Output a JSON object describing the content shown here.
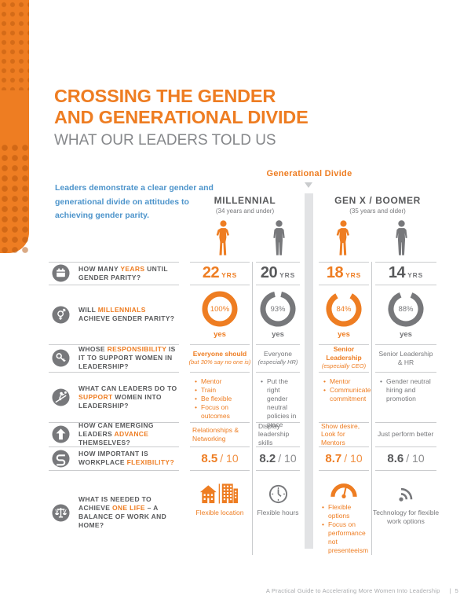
{
  "colors": {
    "orange": "#EE7D22",
    "dark_gray": "#58595B",
    "mid_gray": "#77787B",
    "blue": "#4D94CB",
    "line": "#CBCCCE",
    "band": "#E2E3E5",
    "footer_gray": "#A8AAAD"
  },
  "header": {
    "title_line1": "CROSSING THE GENDER",
    "title_line2": "AND GENERATIONAL DIVIDE",
    "subtitle": "WHAT OUR LEADERS TOLD US",
    "intro": "Leaders demonstrate a clear gender and generational divide on attitudes to achieving gender parity."
  },
  "divide": {
    "label": "Generational Divide",
    "arrow_icon": "chevron-down-icon"
  },
  "groups": [
    {
      "name": "MILLENNIAL",
      "age": "(34 years and under)"
    },
    {
      "name": "GEN X / BOOMER",
      "age": "(35 years and older)"
    }
  ],
  "columns": [
    {
      "group": "MILLENNIAL",
      "gender": "female",
      "tone": "o",
      "icon": "female-figure-icon"
    },
    {
      "group": "MILLENNIAL",
      "gender": "male",
      "tone": "g",
      "icon": "male-figure-icon"
    },
    {
      "group": "GEN X / BOOMER",
      "gender": "female",
      "tone": "o",
      "icon": "female-figure-icon"
    },
    {
      "group": "GEN X / BOOMER",
      "gender": "male",
      "tone": "g",
      "icon": "male-figure-icon"
    }
  ],
  "rows": [
    {
      "id": "years",
      "icon": "calendar-icon",
      "question": [
        {
          "t": "HOW MANY "
        },
        {
          "t": "YEARS",
          "hl": 1
        },
        {
          "t": " UNTIL GENDER PARITY?"
        }
      ],
      "cells": [
        {
          "type": "years",
          "num": "22",
          "unit": "YRS"
        },
        {
          "type": "years",
          "num": "20",
          "unit": "YRS"
        },
        {
          "type": "years",
          "num": "18",
          "unit": "YRS"
        },
        {
          "type": "years",
          "num": "14",
          "unit": "YRS"
        }
      ]
    },
    {
      "id": "parity",
      "icon": "gender-icon",
      "question": [
        {
          "t": "WILL "
        },
        {
          "t": "MILLENNIALS",
          "hl": 1
        },
        {
          "t": " ACHIEVE GENDER PARITY?"
        }
      ],
      "cells": [
        {
          "type": "donut",
          "pct": 100,
          "label": "yes"
        },
        {
          "type": "donut",
          "pct": 93,
          "label": "yes"
        },
        {
          "type": "donut",
          "pct": 84,
          "label": "yes"
        },
        {
          "type": "donut",
          "pct": 88,
          "label": "yes"
        }
      ]
    },
    {
      "id": "responsibility",
      "icon": "key-icon",
      "rowclass": "r-resp",
      "question": [
        {
          "t": "WHOSE "
        },
        {
          "t": "RESPONSIBILITY",
          "hl": 1
        },
        {
          "t": " IS IT TO SUPPORT WOMEN IN LEADERSHIP?"
        }
      ],
      "cells": [
        {
          "type": "rich",
          "segs": [
            {
              "t": "Everyone should ",
              "b": 1
            },
            {
              "t": "(but 30% say no one is)",
              "i": 1
            }
          ]
        },
        {
          "type": "rich",
          "segs": [
            {
              "t": "Everyone"
            },
            {
              "br": 1
            },
            {
              "t": "(especially HR)",
              "i": 1
            }
          ]
        },
        {
          "type": "rich",
          "segs": [
            {
              "t": "Senior Leadership",
              "b": 1
            },
            {
              "br": 1
            },
            {
              "t": "(especially CEO)",
              "i": 1
            }
          ]
        },
        {
          "type": "rich",
          "segs": [
            {
              "t": "Senior Leadership"
            },
            {
              "br": 1
            },
            {
              "t": "& HR"
            }
          ]
        }
      ]
    },
    {
      "id": "support",
      "icon": "support-icon",
      "rowclass": "r-support",
      "question": [
        {
          "t": "WHAT CAN LEADERS DO TO "
        },
        {
          "t": "SUPPORT",
          "hl": 1
        },
        {
          "t": " WOMEN INTO LEADERSHIP?"
        }
      ],
      "cells": [
        {
          "type": "list",
          "items": [
            "Mentor",
            "Train",
            "Be flexible",
            "Focus on outcomes"
          ]
        },
        {
          "type": "list",
          "items": [
            "Put the right gender neutral policies in place"
          ]
        },
        {
          "type": "list",
          "items": [
            "Mentor",
            "Communicate commitment"
          ]
        },
        {
          "type": "list",
          "items": [
            "Gender neutral hiring and promotion"
          ]
        }
      ]
    },
    {
      "id": "advance",
      "icon": "arrow-up-icon",
      "rowclass": "r-advance",
      "question": [
        {
          "t": "HOW CAN EMERGING LEADERS "
        },
        {
          "t": "ADVANCE",
          "hl": 1
        },
        {
          "t": " THEMSELVES?"
        }
      ],
      "cells": [
        {
          "type": "text",
          "text": "Relationships & Networking"
        },
        {
          "type": "text",
          "text": "Display leadership skills"
        },
        {
          "type": "text",
          "text": "Show desire, Look for Mentors"
        },
        {
          "type": "text",
          "text": "Just perform better"
        }
      ]
    },
    {
      "id": "flexibility",
      "icon": "flex-icon",
      "question": [
        {
          "t": "HOW IMPORTANT IS WORKPLACE "
        },
        {
          "t": "FLEXIBILITY?",
          "hl": 1
        }
      ],
      "cells": [
        {
          "type": "score",
          "num": "8.5",
          "den": "/ 10"
        },
        {
          "type": "score",
          "num": "8.2",
          "den": "/ 10"
        },
        {
          "type": "score",
          "num": "8.7",
          "den": "/ 10"
        },
        {
          "type": "score",
          "num": "8.6",
          "den": "/ 10"
        }
      ]
    },
    {
      "id": "onelife",
      "icon": "scales-icon",
      "rowclass": "r-life",
      "question": [
        {
          "t": "WHAT IS NEEDED TO ACHIEVE "
        },
        {
          "t": "ONE LIFE",
          "hl": 1
        },
        {
          "t": " – A BALANCE OF WORK AND HOME?"
        }
      ],
      "cells": [
        {
          "type": "lifetext",
          "icon": "home-building-icon",
          "text": "Flexible location"
        },
        {
          "type": "lifetext",
          "icon": "clock-icon",
          "text": "Flexible hours"
        },
        {
          "type": "lifelist",
          "icon": "gauge-icon",
          "items": [
            "Flexible options",
            "Focus on performance not presenteeism"
          ]
        },
        {
          "type": "lifetext",
          "icon": "wireless-icon",
          "text": "Technology for flexible work options"
        }
      ]
    }
  ],
  "footer": {
    "text": "A Practical Guide to Accelerating More Women Into Leadership",
    "separator": "|",
    "page": "5"
  },
  "chart_data": [
    {
      "type": "pie",
      "variant": "donut",
      "title": "Will millennials achieve gender parity? (% answering yes)",
      "categories": [
        "Millennial female",
        "Millennial male",
        "Gen X/Boomer female",
        "Gen X/Boomer male"
      ],
      "values": [
        100,
        93,
        84,
        88
      ],
      "labels": [
        "yes",
        "yes",
        "yes",
        "yes"
      ]
    },
    {
      "type": "table",
      "title": "How many years until gender parity?",
      "categories": [
        "Millennial female",
        "Millennial male",
        "Gen X/Boomer female",
        "Gen X/Boomer male"
      ],
      "values": [
        22,
        20,
        18,
        14
      ],
      "unit": "YRS"
    },
    {
      "type": "table",
      "title": "How important is workplace flexibility? (out of 10)",
      "categories": [
        "Millennial female",
        "Millennial male",
        "Gen X/Boomer female",
        "Gen X/Boomer male"
      ],
      "values": [
        8.5,
        8.2,
        8.7,
        8.6
      ]
    }
  ]
}
